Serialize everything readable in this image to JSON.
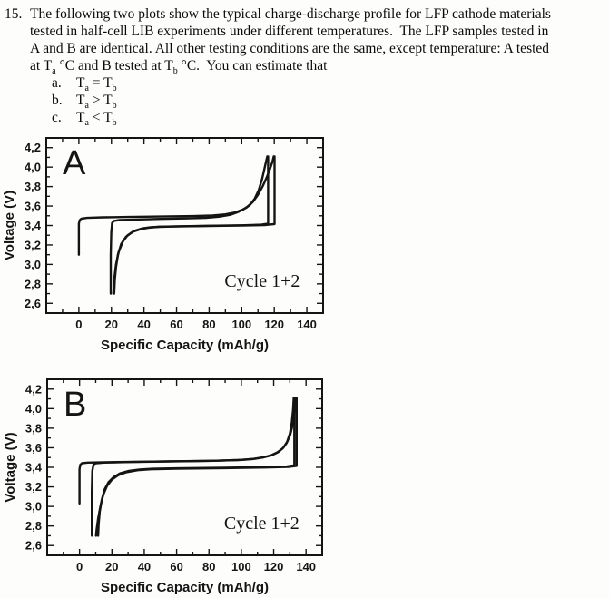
{
  "question": {
    "number": "15.",
    "lines": [
      [
        {
          "t": "The following two plots show the typical charge-discharge profile for LFP cathode materials"
        }
      ],
      [
        {
          "t": "tested in half-cell LIB experiments under different temperatures.  The LFP samples tested in"
        }
      ],
      [
        {
          "t": "A and B are identical. All other testing conditions are the same, except temperature: A tested"
        }
      ],
      [
        {
          "t": "at T"
        },
        {
          "t": "a",
          "sub": true
        },
        {
          "t": " °C and B tested at T"
        },
        {
          "t": "b",
          "sub": true
        },
        {
          "t": " °C.  You can estimate that"
        }
      ]
    ],
    "options": [
      {
        "label": "a.",
        "segments": [
          {
            "t": "T"
          },
          {
            "t": "a",
            "sub": true
          },
          {
            "t": " = T"
          },
          {
            "t": "b",
            "sub": true
          }
        ]
      },
      {
        "label": "b.",
        "segments": [
          {
            "t": "T"
          },
          {
            "t": "a",
            "sub": true
          },
          {
            "t": " > T"
          },
          {
            "t": "b",
            "sub": true
          }
        ]
      },
      {
        "label": "c.",
        "segments": [
          {
            "t": "T"
          },
          {
            "t": "a",
            "sub": true
          },
          {
            "t": " < T"
          },
          {
            "t": "b",
            "sub": true
          }
        ]
      }
    ]
  },
  "chart_data": [
    {
      "type": "line",
      "panel_label": "A",
      "annotation": "Cycle 1+2",
      "xlabel": "Specific Capacity (mAh/g)",
      "ylabel": "Voltage (V)",
      "xlim": [
        -20,
        150
      ],
      "ylim": [
        2.5,
        4.3
      ],
      "x_major_ticks": [
        0,
        20,
        40,
        60,
        80,
        100,
        120,
        140
      ],
      "x_major_labels": [
        "0",
        "20",
        "40",
        "60",
        "80",
        "100",
        "120",
        "140"
      ],
      "x_minor_ticks": [
        -10,
        10,
        30,
        50,
        70,
        90,
        110,
        130,
        150
      ],
      "y_major_ticks": [
        2.6,
        2.8,
        3.0,
        3.2,
        3.4,
        3.6,
        3.8,
        4.0,
        4.2
      ],
      "y_major_labels": [
        "2,6",
        "2,8",
        "3,0",
        "3,2",
        "3,4",
        "3,6",
        "3,8",
        "4,0",
        "4,2"
      ],
      "y_minor_ticks": [
        2.5,
        2.7,
        2.9,
        3.1,
        3.3,
        3.5,
        3.7,
        3.9,
        4.1,
        4.3
      ],
      "legend": "none",
      "grid": false,
      "series": [
        {
          "name": "cycle1-charge",
          "points": [
            [
              0,
              3.1
            ],
            [
              0,
              3.42
            ],
            [
              0.5,
              3.455
            ],
            [
              1.5,
              3.47
            ],
            [
              5,
              3.478
            ],
            [
              15,
              3.484
            ],
            [
              30,
              3.488
            ],
            [
              50,
              3.492
            ],
            [
              70,
              3.497
            ],
            [
              82,
              3.503
            ],
            [
              90,
              3.515
            ],
            [
              96,
              3.535
            ],
            [
              101,
              3.565
            ],
            [
              105,
              3.61
            ],
            [
              108,
              3.675
            ],
            [
              110.5,
              3.765
            ],
            [
              112.5,
              3.875
            ],
            [
              114,
              3.985
            ],
            [
              115,
              4.06
            ],
            [
              115.7,
              4.11
            ]
          ]
        },
        {
          "name": "cycle1-discharge",
          "points": [
            [
              116.2,
              4.11
            ],
            [
              116.2,
              3.42
            ],
            [
              112,
              3.408
            ],
            [
              100,
              3.402
            ],
            [
              80,
              3.397
            ],
            [
              60,
              3.392
            ],
            [
              50,
              3.388
            ],
            [
              44,
              3.382
            ],
            [
              39,
              3.37
            ],
            [
              34,
              3.345
            ],
            [
              30,
              3.3
            ],
            [
              27,
              3.235
            ],
            [
              24.5,
              3.13
            ],
            [
              22.8,
              3.0
            ],
            [
              21.8,
              2.86
            ],
            [
              21.2,
              2.7
            ]
          ]
        },
        {
          "name": "cycle2-charge",
          "points": [
            [
              19.6,
              2.7
            ],
            [
              19.6,
              3.1
            ],
            [
              19.9,
              3.33
            ],
            [
              20.4,
              3.425
            ],
            [
              21.5,
              3.448
            ],
            [
              25,
              3.456
            ],
            [
              35,
              3.462
            ],
            [
              50,
              3.468
            ],
            [
              65,
              3.473
            ],
            [
              78,
              3.479
            ],
            [
              86,
              3.49
            ],
            [
              93,
              3.51
            ],
            [
              98,
              3.54
            ],
            [
              103,
              3.585
            ],
            [
              107,
              3.645
            ],
            [
              110,
              3.715
            ],
            [
              112.8,
              3.8
            ],
            [
              115.2,
              3.89
            ],
            [
              117.2,
              3.975
            ],
            [
              118.8,
              4.05
            ],
            [
              119.7,
              4.11
            ]
          ]
        },
        {
          "name": "cycle2-discharge",
          "points": [
            [
              120.2,
              4.11
            ],
            [
              120.2,
              3.415
            ],
            [
              114,
              3.405
            ],
            [
              100,
              3.4
            ],
            [
              80,
              3.395
            ],
            [
              60,
              3.39
            ],
            [
              49,
              3.386
            ],
            [
              43,
              3.378
            ],
            [
              38,
              3.363
            ],
            [
              33,
              3.335
            ],
            [
              29,
              3.285
            ],
            [
              26,
              3.21
            ],
            [
              24,
              3.1
            ],
            [
              22.8,
              2.97
            ],
            [
              22.1,
              2.84
            ],
            [
              21.7,
              2.7
            ]
          ]
        }
      ]
    },
    {
      "type": "line",
      "panel_label": "B",
      "annotation": "Cycle 1+2",
      "xlabel": "Specific Capacity (mAh/g)",
      "ylabel": "Voltage (V)",
      "xlim": [
        -20,
        150
      ],
      "ylim": [
        2.5,
        4.3
      ],
      "x_major_ticks": [
        0,
        20,
        40,
        60,
        80,
        100,
        120,
        140
      ],
      "x_major_labels": [
        "0",
        "20",
        "40",
        "60",
        "80",
        "100",
        "120",
        "140"
      ],
      "x_minor_ticks": [
        -10,
        10,
        30,
        50,
        70,
        90,
        110,
        130,
        150
      ],
      "y_major_ticks": [
        2.6,
        2.8,
        3.0,
        3.2,
        3.4,
        3.6,
        3.8,
        4.0,
        4.2
      ],
      "y_major_labels": [
        "2,6",
        "2,8",
        "3,0",
        "3,2",
        "3,4",
        "3,6",
        "3,8",
        "4,0",
        "4,2"
      ],
      "y_minor_ticks": [
        2.5,
        2.7,
        2.9,
        3.1,
        3.3,
        3.5,
        3.7,
        3.9,
        4.1,
        4.3
      ],
      "legend": "none",
      "grid": false,
      "series": [
        {
          "name": "cycle1-charge",
          "points": [
            [
              0,
              3.03
            ],
            [
              0,
              3.38
            ],
            [
              0.4,
              3.425
            ],
            [
              1.5,
              3.442
            ],
            [
              5,
              3.448
            ],
            [
              15,
              3.452
            ],
            [
              35,
              3.457
            ],
            [
              60,
              3.462
            ],
            [
              85,
              3.468
            ],
            [
              100,
              3.476
            ],
            [
              108,
              3.487
            ],
            [
              114,
              3.503
            ],
            [
              119,
              3.525
            ],
            [
              123,
              3.558
            ],
            [
              126,
              3.6
            ],
            [
              128.3,
              3.66
            ],
            [
              130,
              3.745
            ],
            [
              131.2,
              3.86
            ],
            [
              132,
              3.99
            ],
            [
              132.4,
              4.11
            ]
          ]
        },
        {
          "name": "cycle1-discharge",
          "points": [
            [
              132.8,
              4.11
            ],
            [
              132.8,
              3.42
            ],
            [
              128,
              3.408
            ],
            [
              115,
              3.402
            ],
            [
              90,
              3.396
            ],
            [
              60,
              3.39
            ],
            [
              45,
              3.385
            ],
            [
              37,
              3.377
            ],
            [
              30,
              3.362
            ],
            [
              25,
              3.338
            ],
            [
              21,
              3.3
            ],
            [
              18,
              3.25
            ],
            [
              15.5,
              3.175
            ],
            [
              13.8,
              3.07
            ],
            [
              12.5,
              2.945
            ],
            [
              11.8,
              2.82
            ],
            [
              11.5,
              2.7
            ]
          ]
        },
        {
          "name": "cycle2-charge",
          "points": [
            [
              7.6,
              2.7
            ],
            [
              7.6,
              3.15
            ],
            [
              7.9,
              3.36
            ],
            [
              8.6,
              3.428
            ],
            [
              10,
              3.442
            ],
            [
              15,
              3.448
            ],
            [
              30,
              3.454
            ],
            [
              55,
              3.46
            ],
            [
              80,
              3.466
            ],
            [
              98,
              3.474
            ],
            [
              107,
              3.484
            ],
            [
              113,
              3.5
            ],
            [
              118,
              3.52
            ],
            [
              122,
              3.55
            ],
            [
              125.5,
              3.592
            ],
            [
              128,
              3.648
            ],
            [
              130.2,
              3.73
            ],
            [
              131.8,
              3.84
            ],
            [
              133,
              3.97
            ],
            [
              133.6,
              4.11
            ]
          ]
        },
        {
          "name": "cycle2-discharge",
          "points": [
            [
              134.2,
              4.11
            ],
            [
              134.2,
              3.415
            ],
            [
              129,
              3.404
            ],
            [
              115,
              3.398
            ],
            [
              90,
              3.392
            ],
            [
              60,
              3.386
            ],
            [
              44,
              3.38
            ],
            [
              36,
              3.37
            ],
            [
              29,
              3.35
            ],
            [
              24,
              3.32
            ],
            [
              20,
              3.275
            ],
            [
              17,
              3.21
            ],
            [
              14.8,
              3.125
            ],
            [
              13,
              3.01
            ],
            [
              11.5,
              2.875
            ],
            [
              10.5,
              2.76
            ],
            [
              10.2,
              2.7
            ]
          ]
        }
      ]
    }
  ]
}
